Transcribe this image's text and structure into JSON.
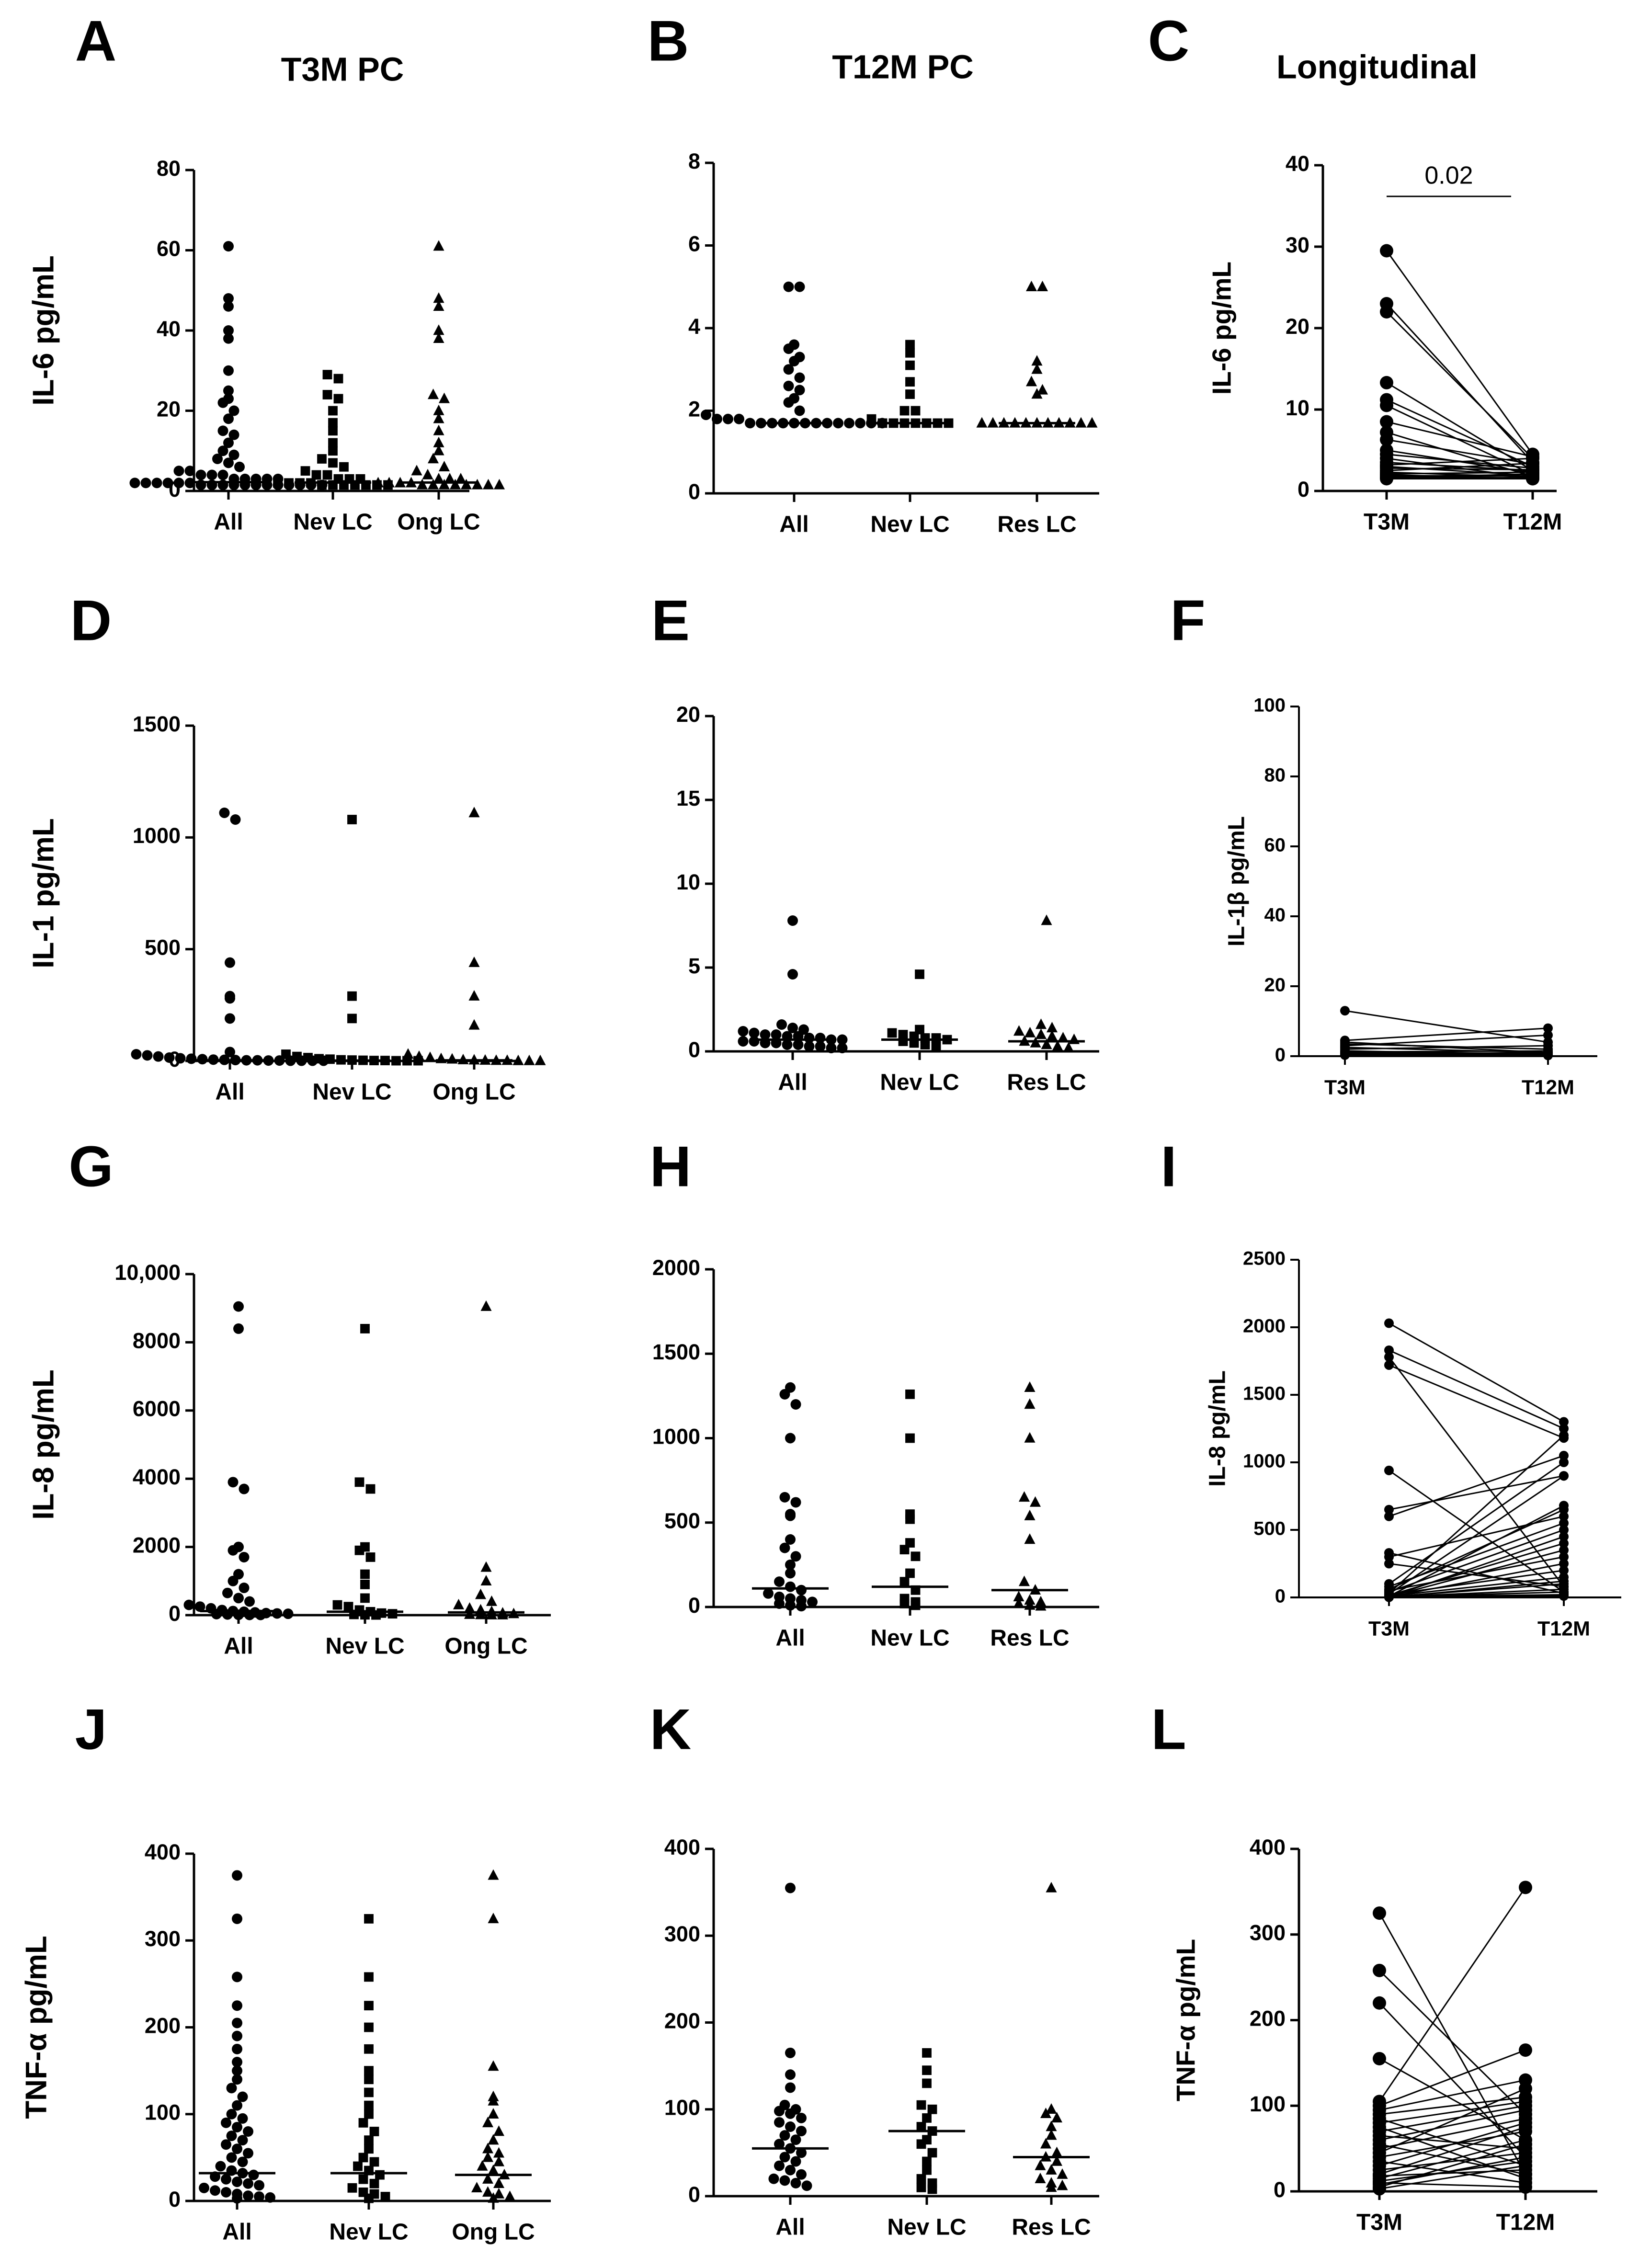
{
  "figure": {
    "column_titles": [
      "T3M PC",
      "T12M PC",
      "Longitudinal"
    ],
    "colors": {
      "ink": "#000000",
      "background": "#ffffff"
    }
  },
  "chart_data": [
    {
      "panel": "A",
      "type": "scatter",
      "subtype": "dot-plot",
      "title": "T3M PC",
      "xlabel": "",
      "ylabel": "IL-6 pg/mL",
      "ylim": [
        0,
        80
      ],
      "yticks": [
        0,
        20,
        40,
        60,
        80
      ],
      "categories": [
        "All",
        "Nev LC",
        "Ong LC"
      ],
      "markers": [
        "circle",
        "square",
        "triangle"
      ],
      "groups": [
        [
          61,
          48,
          46,
          40,
          38,
          30,
          25,
          23,
          22,
          20,
          18,
          15,
          14,
          12,
          10,
          9,
          8,
          7,
          6,
          5,
          5,
          4,
          4,
          4,
          3,
          3,
          3,
          3,
          3,
          2,
          2,
          2,
          2,
          2,
          2,
          1.5,
          1.5,
          1.5,
          1.5,
          1.5,
          1.5,
          1.5,
          1.5,
          1.5,
          1.5,
          1.5,
          1.5
        ],
        [
          29,
          28,
          24,
          23,
          20,
          17,
          15,
          12,
          10,
          8,
          7,
          6,
          5,
          4,
          4,
          3,
          3,
          3,
          2,
          2,
          2,
          2,
          1.5,
          1.5,
          1.5,
          1.5,
          1.5,
          1.5,
          1.5
        ],
        [
          61,
          48,
          46,
          40,
          38,
          24,
          23,
          20,
          18,
          15,
          12,
          10,
          8,
          6,
          5,
          4,
          3,
          3,
          3,
          2,
          2,
          2,
          2,
          1.5,
          1.5,
          1.5,
          1.5,
          1.5,
          1.5,
          1.5,
          1.5
        ]
      ],
      "medians": [
        2.2,
        2.1,
        2.1
      ]
    },
    {
      "panel": "B",
      "type": "scatter",
      "subtype": "dot-plot",
      "title": "T12M PC",
      "xlabel": "",
      "ylabel": "",
      "ylim": [
        0,
        8
      ],
      "yticks": [
        0,
        2,
        4,
        6,
        8
      ],
      "categories": [
        "All",
        "Nev LC",
        "Res LC"
      ],
      "markers": [
        "circle",
        "square",
        "triangle"
      ],
      "groups": [
        [
          5,
          5,
          3.6,
          3.5,
          3.3,
          3.2,
          3,
          2.8,
          2.6,
          2.5,
          2.3,
          2.2,
          2,
          1.9,
          1.8,
          1.8,
          1.8,
          1.7,
          1.7,
          1.7,
          1.7,
          1.7,
          1.7,
          1.7,
          1.7,
          1.7,
          1.7,
          1.7,
          1.7,
          1.7
        ],
        [
          3.6,
          3.4,
          3.1,
          2.7,
          2.4,
          2,
          2,
          1.8,
          1.7,
          1.7,
          1.7,
          1.7,
          1.7,
          1.7,
          1.7
        ],
        [
          5,
          5,
          3.2,
          3,
          2.7,
          2.5,
          2.4,
          1.7,
          1.7,
          1.7,
          1.7,
          1.7,
          1.7,
          1.7,
          1.7,
          1.7,
          1.7,
          1.7
        ]
      ],
      "medians": [
        1.7,
        1.7,
        1.7
      ]
    },
    {
      "panel": "C",
      "type": "line",
      "subtype": "paired",
      "title": "Longitudinal",
      "xlabel": "",
      "ylabel": "IL-6 pg/mL",
      "ylim": [
        0,
        40
      ],
      "yticks": [
        0,
        10,
        20,
        30,
        40
      ],
      "categories": [
        "T3M",
        "T12M"
      ],
      "pairs": [
        [
          29.5,
          4.5
        ],
        [
          23,
          3.5
        ],
        [
          22,
          4
        ],
        [
          13.3,
          2.5
        ],
        [
          11.2,
          3
        ],
        [
          10.5,
          2
        ],
        [
          8.5,
          4.2
        ],
        [
          7.2,
          1.8
        ],
        [
          6.3,
          3.3
        ],
        [
          5,
          2.2
        ],
        [
          4.5,
          2.8
        ],
        [
          4,
          1.6
        ],
        [
          3.5,
          2.5
        ],
        [
          3.2,
          4
        ],
        [
          3,
          1.9
        ],
        [
          2.8,
          2.6
        ],
        [
          2.5,
          3.4
        ],
        [
          2.3,
          1.7
        ],
        [
          2.1,
          2.3
        ],
        [
          2,
          1.5
        ],
        [
          1.9,
          1.8
        ],
        [
          1.8,
          2
        ],
        [
          1.7,
          1.6
        ],
        [
          1.6,
          2.1
        ],
        [
          1.5,
          1.5
        ]
      ],
      "annotation": "0.02"
    },
    {
      "panel": "D",
      "type": "scatter",
      "subtype": "dot-plot",
      "title": "",
      "xlabel": "",
      "ylabel": "IL-1 pg/mL",
      "ylim": [
        0,
        1500
      ],
      "yticks": [
        0,
        500,
        1000,
        1500
      ],
      "categories": [
        "All",
        "Nev LC",
        "Ong LC"
      ],
      "markers": [
        "circle",
        "square",
        "triangle"
      ],
      "groups": [
        [
          1110,
          1080,
          440,
          290,
          280,
          190,
          40,
          30,
          25,
          20,
          15,
          12,
          10,
          8,
          6,
          5,
          4,
          3,
          3,
          2,
          2,
          1,
          1,
          1,
          1
        ],
        [
          1080,
          290,
          190,
          30,
          20,
          15,
          10,
          8,
          5,
          4,
          3,
          2,
          2,
          1,
          1,
          1
        ],
        [
          1110,
          440,
          290,
          160,
          30,
          20,
          15,
          10,
          8,
          5,
          4,
          3,
          2,
          2,
          1,
          1,
          1
        ]
      ],
      "medians": [
        3,
        2,
        3
      ]
    },
    {
      "panel": "E",
      "type": "scatter",
      "subtype": "dot-plot",
      "title": "",
      "xlabel": "",
      "ylabel": "",
      "ylim": [
        0,
        20
      ],
      "yticks": [
        0,
        5,
        10,
        15,
        20
      ],
      "categories": [
        "All",
        "Nev LC",
        "Res LC"
      ],
      "markers": [
        "circle",
        "square",
        "triangle"
      ],
      "groups": [
        [
          7.8,
          4.6,
          1.6,
          1.4,
          1.3,
          1.2,
          1.1,
          1,
          1,
          0.9,
          0.9,
          0.8,
          0.8,
          0.7,
          0.7,
          0.6,
          0.6,
          0.5,
          0.5,
          0.4,
          0.4,
          0.3,
          0.3,
          0.2,
          0.2
        ],
        [
          4.6,
          1.3,
          1.1,
          1,
          0.9,
          0.8,
          0.8,
          0.7,
          0.6,
          0.5,
          0.4,
          0.3
        ],
        [
          7.8,
          1.6,
          1.4,
          1.2,
          1.1,
          1,
          0.9,
          0.8,
          0.7,
          0.6,
          0.5,
          0.4,
          0.3,
          0.2
        ]
      ],
      "medians": [
        0.7,
        0.7,
        0.6
      ]
    },
    {
      "panel": "F",
      "type": "line",
      "subtype": "paired",
      "title": "",
      "xlabel": "",
      "ylabel": "IL-1β pg/mL",
      "ylim": [
        0,
        100
      ],
      "yticks": [
        0,
        20,
        40,
        60,
        80,
        100
      ],
      "categories": [
        "T3M",
        "T12M"
      ],
      "pairs": [
        [
          13,
          4
        ],
        [
          4.5,
          8
        ],
        [
          4,
          1
        ],
        [
          3.5,
          2
        ],
        [
          3,
          6
        ],
        [
          2.5,
          1
        ],
        [
          2,
          3
        ],
        [
          1.5,
          0.5
        ],
        [
          1.2,
          1.5
        ],
        [
          1,
          0.8
        ],
        [
          0.8,
          0.5
        ],
        [
          0.6,
          1
        ],
        [
          0.5,
          0.3
        ],
        [
          0.4,
          0.6
        ],
        [
          0.3,
          0.2
        ]
      ]
    },
    {
      "panel": "G",
      "type": "scatter",
      "subtype": "dot-plot",
      "title": "",
      "xlabel": "",
      "ylabel": "IL-8 pg/mL",
      "ylim": [
        0,
        10000
      ],
      "yticks": [
        0,
        2000,
        4000,
        6000,
        8000,
        10000
      ],
      "categories": [
        "All",
        "Nev LC",
        "Ong LC"
      ],
      "markers": [
        "circle",
        "square",
        "triangle"
      ],
      "groups": [
        [
          9050,
          8400,
          3900,
          3700,
          2000,
          1900,
          1700,
          1200,
          1000,
          800,
          650,
          500,
          400,
          300,
          250,
          200,
          150,
          120,
          100,
          80,
          60,
          50,
          40,
          30,
          20,
          10,
          5,
          5
        ],
        [
          8400,
          3900,
          3700,
          2000,
          1900,
          1700,
          1200,
          900,
          500,
          300,
          250,
          150,
          100,
          60,
          40,
          20,
          10,
          5
        ],
        [
          9050,
          1400,
          1000,
          600,
          400,
          300,
          200,
          150,
          100,
          60,
          40,
          20,
          10,
          5,
          5
        ]
      ],
      "medians": [
        120,
        100,
        80
      ]
    },
    {
      "panel": "H",
      "type": "scatter",
      "subtype": "dot-plot",
      "title": "",
      "xlabel": "",
      "ylabel": "",
      "ylim": [
        0,
        2000
      ],
      "yticks": [
        0,
        500,
        1000,
        1500,
        2000
      ],
      "categories": [
        "All",
        "Nev LC",
        "Res LC"
      ],
      "markers": [
        "circle",
        "square",
        "triangle"
      ],
      "groups": [
        [
          1300,
          1260,
          1200,
          1000,
          650,
          620,
          550,
          540,
          400,
          350,
          300,
          250,
          200,
          150,
          120,
          100,
          80,
          60,
          50,
          40,
          30,
          20,
          10,
          5
        ],
        [
          1260,
          1000,
          550,
          520,
          380,
          340,
          300,
          200,
          150,
          100,
          50,
          30,
          20,
          10
        ],
        [
          1300,
          1200,
          1000,
          650,
          620,
          540,
          400,
          150,
          100,
          60,
          40,
          30,
          20,
          10,
          5
        ]
      ],
      "medians": [
        110,
        120,
        100
      ]
    },
    {
      "panel": "I",
      "type": "line",
      "subtype": "paired",
      "title": "",
      "xlabel": "",
      "ylabel": "IL-8 pg/mL",
      "ylim": [
        0,
        2500
      ],
      "yticks": [
        0,
        500,
        1000,
        1500,
        2000,
        2500
      ],
      "categories": [
        "T3M",
        "T12M"
      ],
      "pairs": [
        [
          2030,
          1300
        ],
        [
          1830,
          1250
        ],
        [
          1780,
          80
        ],
        [
          1720,
          1180
        ],
        [
          940,
          40
        ],
        [
          650,
          900
        ],
        [
          600,
          1050
        ],
        [
          330,
          30
        ],
        [
          300,
          600
        ],
        [
          250,
          80
        ],
        [
          100,
          1000
        ],
        [
          80,
          550
        ],
        [
          60,
          650
        ],
        [
          50,
          300
        ],
        [
          40,
          500
        ],
        [
          30,
          1200
        ],
        [
          25,
          900
        ],
        [
          20,
          200
        ],
        [
          15,
          400
        ],
        [
          10,
          150
        ],
        [
          8,
          680
        ],
        [
          6,
          20
        ],
        [
          5,
          350
        ],
        [
          5,
          100
        ],
        [
          4,
          60
        ],
        [
          3,
          40
        ],
        [
          3,
          250
        ],
        [
          2,
          10
        ],
        [
          2,
          450
        ],
        [
          1,
          120
        ]
      ]
    },
    {
      "panel": "J",
      "type": "scatter",
      "subtype": "dot-plot",
      "title": "",
      "xlabel": "",
      "ylabel": "TNF-α pg/mL",
      "ylim": [
        0,
        400
      ],
      "yticks": [
        0,
        100,
        200,
        300,
        400
      ],
      "categories": [
        "All",
        "Nev LC",
        "Ong LC"
      ],
      "markers": [
        "circle",
        "square",
        "triangle"
      ],
      "groups": [
        [
          375,
          325,
          258,
          225,
          205,
          190,
          175,
          160,
          150,
          140,
          130,
          120,
          110,
          100,
          95,
          90,
          85,
          80,
          75,
          70,
          65,
          60,
          55,
          50,
          45,
          40,
          35,
          32,
          30,
          28,
          25,
          22,
          20,
          18,
          15,
          12,
          10,
          8,
          6,
          5,
          4,
          3
        ],
        [
          325,
          258,
          225,
          200,
          175,
          150,
          140,
          125,
          110,
          100,
          90,
          80,
          70,
          60,
          50,
          45,
          40,
          35,
          30,
          25,
          20,
          15,
          10,
          8,
          5,
          3
        ],
        [
          375,
          325,
          155,
          120,
          115,
          100,
          90,
          80,
          70,
          60,
          55,
          50,
          45,
          40,
          35,
          30,
          25,
          20,
          15,
          10,
          8,
          5,
          3
        ]
      ],
      "medians": [
        32,
        32,
        30
      ]
    },
    {
      "panel": "K",
      "type": "scatter",
      "subtype": "dot-plot",
      "title": "",
      "xlabel": "",
      "ylabel": "",
      "ylim": [
        0,
        400
      ],
      "yticks": [
        0,
        100,
        200,
        300,
        400
      ],
      "categories": [
        "All",
        "Nev LC",
        "Res LC"
      ],
      "markers": [
        "circle",
        "square",
        "triangle"
      ],
      "groups": [
        [
          355,
          165,
          140,
          125,
          105,
          100,
          98,
          95,
          90,
          85,
          80,
          75,
          70,
          65,
          60,
          55,
          50,
          45,
          40,
          35,
          30,
          25,
          20,
          18,
          15,
          12
        ],
        [
          165,
          145,
          130,
          105,
          100,
          90,
          80,
          75,
          65,
          60,
          50,
          40,
          30,
          20,
          15,
          10,
          8
        ],
        [
          355,
          100,
          95,
          90,
          80,
          70,
          60,
          50,
          45,
          40,
          35,
          30,
          25,
          20,
          15,
          12,
          10
        ]
      ],
      "medians": [
        55,
        75,
        45
      ]
    },
    {
      "panel": "L",
      "type": "line",
      "subtype": "paired",
      "title": "",
      "xlabel": "",
      "ylabel": "TNF-α pg/mL",
      "ylim": [
        0,
        400
      ],
      "yticks": [
        0,
        100,
        200,
        300,
        400
      ],
      "categories": [
        "T3M",
        "T12M"
      ],
      "pairs": [
        [
          325,
          20
        ],
        [
          258,
          90
        ],
        [
          220,
          40
        ],
        [
          155,
          60
        ],
        [
          105,
          355
        ],
        [
          100,
          165
        ],
        [
          95,
          130
        ],
        [
          90,
          110
        ],
        [
          85,
          30
        ],
        [
          80,
          105
        ],
        [
          75,
          15
        ],
        [
          70,
          100
        ],
        [
          65,
          50
        ],
        [
          60,
          95
        ],
        [
          55,
          20
        ],
        [
          50,
          85
        ],
        [
          45,
          120
        ],
        [
          40,
          70
        ],
        [
          35,
          10
        ],
        [
          30,
          80
        ],
        [
          25,
          45
        ],
        [
          20,
          75
        ],
        [
          18,
          25
        ],
        [
          15,
          60
        ],
        [
          12,
          35
        ],
        [
          10,
          5
        ],
        [
          8,
          40
        ],
        [
          5,
          55
        ],
        [
          3,
          30
        ]
      ]
    }
  ]
}
